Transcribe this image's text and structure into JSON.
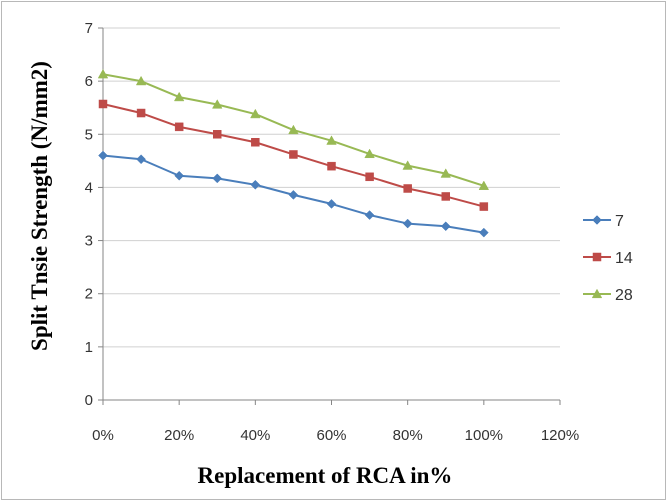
{
  "chart_data": {
    "type": "line",
    "title": "",
    "xlabel": "Replacement of RCA  in%",
    "ylabel": "Split Tnsie Strength (N/mm2)",
    "x": [
      0,
      10,
      20,
      30,
      40,
      50,
      60,
      70,
      80,
      90,
      100
    ],
    "xlim": [
      0,
      120
    ],
    "x_ticks": [
      0,
      20,
      40,
      60,
      80,
      100,
      120
    ],
    "x_tick_labels": [
      "0%",
      "20%",
      "40%",
      "60%",
      "80%",
      "100%",
      "120%"
    ],
    "ylim": [
      0,
      7
    ],
    "y_ticks": [
      0,
      1,
      2,
      3,
      4,
      5,
      6,
      7
    ],
    "y_tick_labels": [
      "0",
      "1",
      "2",
      "3",
      "4",
      "5",
      "6",
      "7"
    ],
    "grid": "horizontal",
    "legend_position": "right",
    "series": [
      {
        "name": "7",
        "color": "#4a7ebb",
        "marker": "diamond",
        "values": [
          4.6,
          4.53,
          4.22,
          4.17,
          4.05,
          3.86,
          3.69,
          3.48,
          3.32,
          3.27,
          3.15
        ]
      },
      {
        "name": "14",
        "color": "#be4b48",
        "marker": "square",
        "values": [
          5.57,
          5.4,
          5.14,
          5.0,
          4.85,
          4.62,
          4.4,
          4.2,
          3.98,
          3.83,
          3.64
        ]
      },
      {
        "name": "28",
        "color": "#98b954",
        "marker": "triangle",
        "values": [
          6.13,
          6.0,
          5.7,
          5.56,
          5.38,
          5.08,
          4.88,
          4.63,
          4.41,
          4.26,
          4.03
        ]
      }
    ]
  }
}
